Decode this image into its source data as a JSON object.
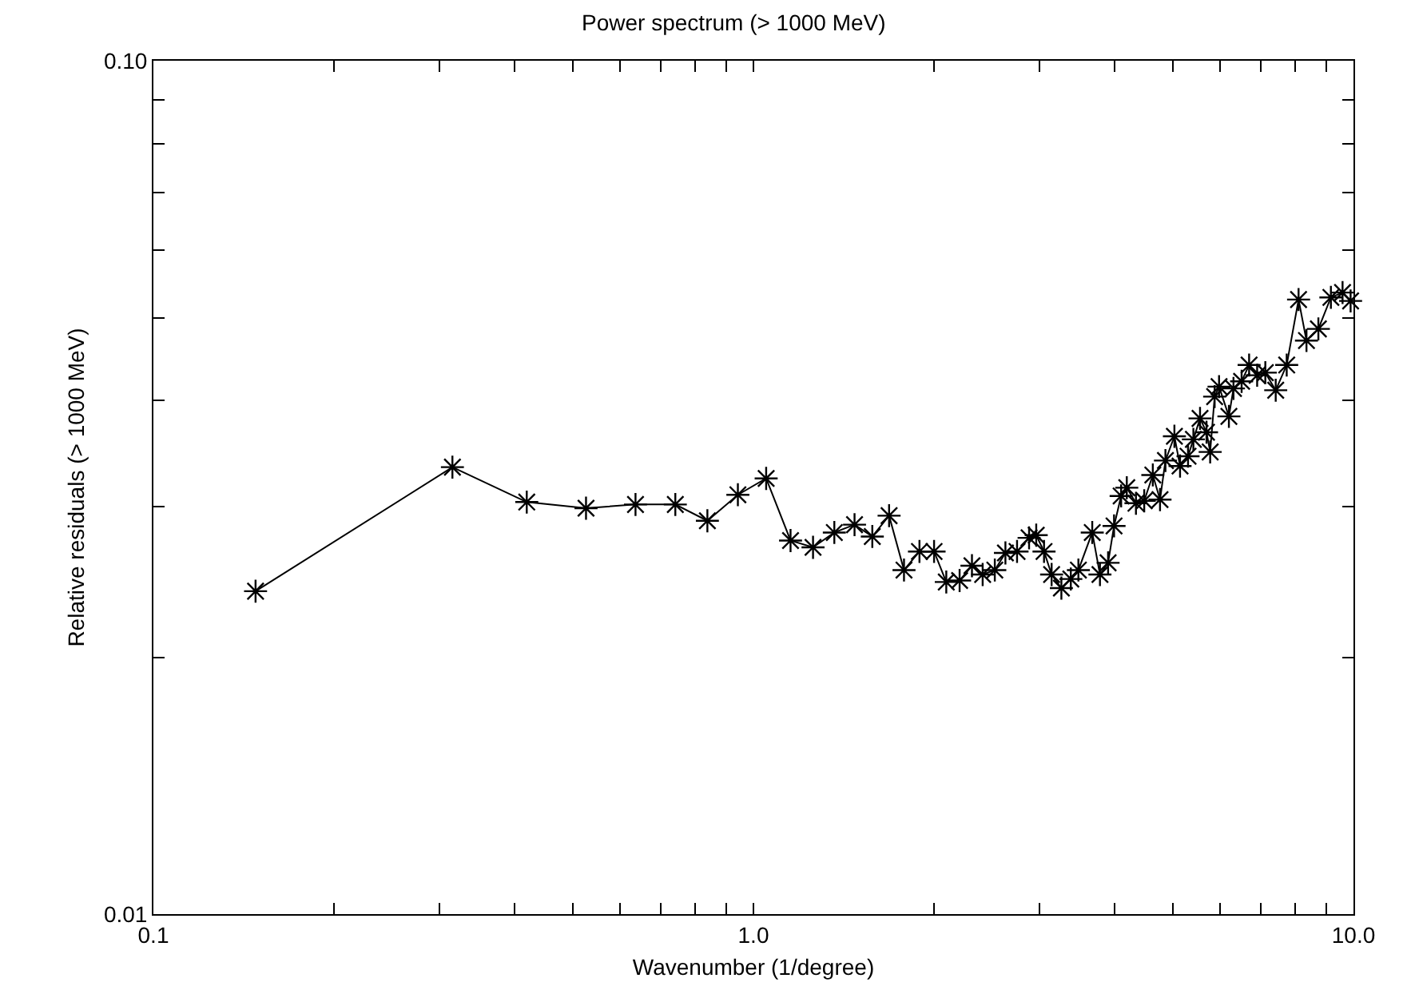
{
  "chart_data": {
    "type": "line",
    "title": "Power spectrum (> 1000 MeV)",
    "xlabel": "Wavenumber (1/degree)",
    "ylabel": "Relative residuals (> 1000 MeV)",
    "log": "xy",
    "grid": false,
    "marker": "cross",
    "line_style": "solid",
    "xlim": [
      0.1,
      10
    ],
    "ylim": [
      0.01,
      0.1
    ],
    "xticks": [
      {
        "value": 0.1,
        "label": "0.1"
      },
      {
        "value": 0.2,
        "label": null
      },
      {
        "value": 0.3,
        "label": null
      },
      {
        "value": 0.4,
        "label": null
      },
      {
        "value": 0.5,
        "label": null
      },
      {
        "value": 0.6,
        "label": null
      },
      {
        "value": 0.7,
        "label": null
      },
      {
        "value": 0.8,
        "label": null
      },
      {
        "value": 0.9,
        "label": null
      },
      {
        "value": 1,
        "label": "1.0"
      },
      {
        "value": 2,
        "label": null
      },
      {
        "value": 3,
        "label": null
      },
      {
        "value": 4,
        "label": null
      },
      {
        "value": 5,
        "label": null
      },
      {
        "value": 6,
        "label": null
      },
      {
        "value": 7,
        "label": null
      },
      {
        "value": 8,
        "label": null
      },
      {
        "value": 9,
        "label": null
      },
      {
        "value": 10,
        "label": "10.0"
      }
    ],
    "yticks": [
      {
        "value": 0.01,
        "label": "0.01"
      },
      {
        "value": 0.02,
        "label": null
      },
      {
        "value": 0.03,
        "label": null
      },
      {
        "value": 0.04,
        "label": null
      },
      {
        "value": 0.05,
        "label": null
      },
      {
        "value": 0.06,
        "label": null
      },
      {
        "value": 0.07,
        "label": null
      },
      {
        "value": 0.08,
        "label": null
      },
      {
        "value": 0.09,
        "label": null
      },
      {
        "value": 0.1,
        "label": "0.10"
      }
    ],
    "series": [
      {
        "color": "#000000",
        "x": [
          0.148,
          0.315,
          0.419,
          0.526,
          0.636,
          0.741,
          0.838,
          0.942,
          1.05,
          1.153,
          1.257,
          1.364,
          1.474,
          1.578,
          1.683,
          1.782,
          1.891,
          2.0,
          2.096,
          2.206,
          2.313,
          2.41,
          2.525,
          2.63,
          2.75,
          2.88,
          2.96,
          3.05,
          3.14,
          3.26,
          3.38,
          3.48,
          3.67,
          3.78,
          3.9,
          3.99,
          4.1,
          4.19,
          4.34,
          4.48,
          4.63,
          4.76,
          4.86,
          5.03,
          5.14,
          5.3,
          5.41,
          5.55,
          5.69,
          5.77,
          5.87,
          5.97,
          6.2,
          6.31,
          6.51,
          6.7,
          6.91,
          7.13,
          7.42,
          7.74,
          8.1,
          8.35,
          8.74,
          9.17,
          9.59,
          9.89
        ],
        "values": [
          0.0239,
          0.0334,
          0.0304,
          0.0299,
          0.0302,
          0.0302,
          0.0289,
          0.031,
          0.0324,
          0.0274,
          0.0269,
          0.028,
          0.0286,
          0.0277,
          0.0293,
          0.0253,
          0.0266,
          0.0266,
          0.0245,
          0.0246,
          0.0256,
          0.025,
          0.0253,
          0.0265,
          0.0266,
          0.0276,
          0.0278,
          0.0266,
          0.025,
          0.0241,
          0.0247,
          0.0253,
          0.028,
          0.025,
          0.0258,
          0.0285,
          0.0309,
          0.0316,
          0.0303,
          0.0305,
          0.0327,
          0.0306,
          0.034,
          0.0363,
          0.0335,
          0.0344,
          0.036,
          0.0381,
          0.0367,
          0.0348,
          0.0404,
          0.0415,
          0.0383,
          0.0413,
          0.0421,
          0.044,
          0.0428,
          0.0431,
          0.0411,
          0.044,
          0.0525,
          0.047,
          0.0485,
          0.0528,
          0.0535,
          0.0523
        ]
      }
    ]
  }
}
